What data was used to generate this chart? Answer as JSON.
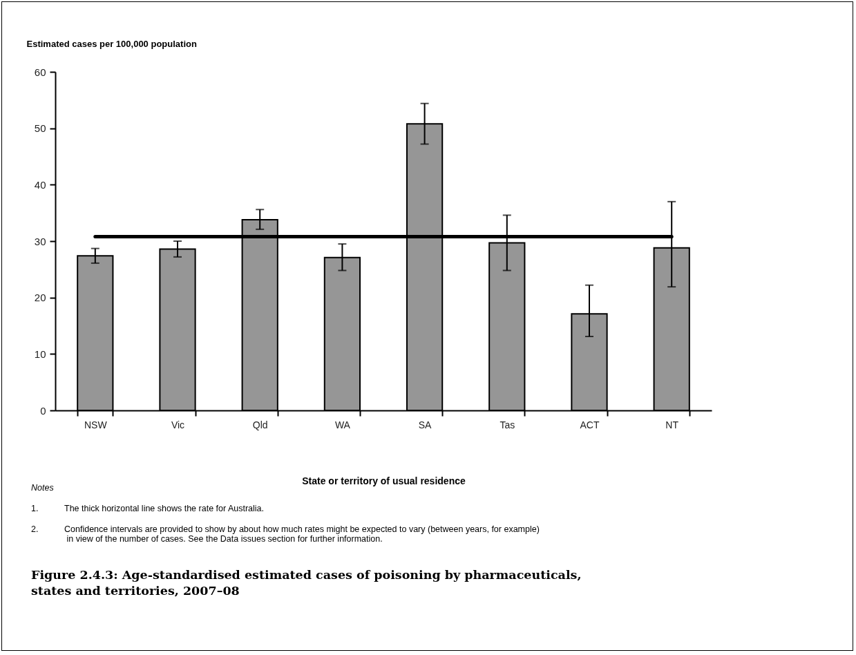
{
  "chart_data": {
    "type": "bar",
    "title": "Figure 2.4.3: Age-standardised estimated cases of poisoning by pharmaceuticals, states and territories, 2007–08",
    "ylabel": "Estimated cases per 100,000 population",
    "xlabel": "State or territory of usual residence",
    "categories": [
      "NSW",
      "Vic",
      "Qld",
      "WA",
      "SA",
      "Tas",
      "ACT",
      "NT"
    ],
    "values": [
      27.4,
      28.6,
      33.8,
      27.1,
      50.8,
      29.7,
      17.1,
      28.8
    ],
    "errors": [
      [
        26.1,
        28.7
      ],
      [
        27.2,
        30.0
      ],
      [
        32.1,
        35.6
      ],
      [
        24.8,
        29.5
      ],
      [
        47.2,
        54.4
      ],
      [
        24.8,
        34.6
      ],
      [
        13.1,
        22.2
      ],
      [
        21.9,
        37.0
      ]
    ],
    "color": "#969696",
    "ylim": [
      0,
      60
    ],
    "yticks": [
      0,
      10,
      20,
      30,
      40,
      50,
      60
    ],
    "grid": false,
    "ref_lines": [
      {
        "axis": "y",
        "value": 30.8,
        "color": "#000000"
      }
    ],
    "annotations": [
      "Notes",
      "1.\tThe thick horizontal line shows the rate for Australia.",
      "2.\tConfidence intervals are provided to show by about how much rates might be expected to vary (between years, for example)\n in view of the number of cases. See the Data issues section for further information."
    ]
  }
}
